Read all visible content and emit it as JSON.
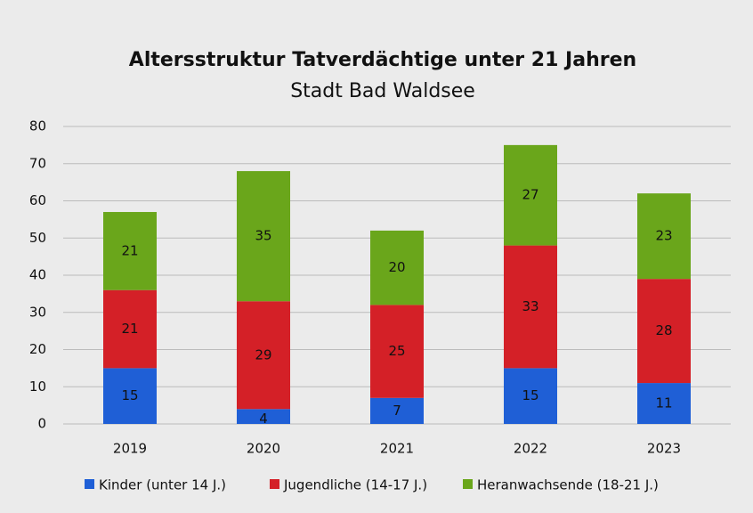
{
  "chart_data": {
    "type": "bar",
    "stacked": true,
    "title": "Altersstruktur Tatverdächtige unter 21 Jahren",
    "subtitle": "Stadt Bad Waldsee",
    "categories": [
      "2019",
      "2020",
      "2021",
      "2022",
      "2023"
    ],
    "series": [
      {
        "name": "Kinder (unter 14 J.)",
        "color": "#1f5fd6",
        "values": [
          15,
          4,
          7,
          15,
          11
        ]
      },
      {
        "name": "Jugendliche (14-17 J.)",
        "color": "#d42027",
        "values": [
          21,
          29,
          25,
          33,
          28
        ]
      },
      {
        "name": "Heranwachsende (18-21 J.)",
        "color": "#6aa61b",
        "values": [
          21,
          35,
          20,
          27,
          23
        ]
      }
    ],
    "ylim": [
      0,
      80
    ],
    "yticks": [
      0,
      10,
      20,
      30,
      40,
      50,
      60,
      70,
      80
    ],
    "grid": true,
    "legend": "bottom"
  }
}
